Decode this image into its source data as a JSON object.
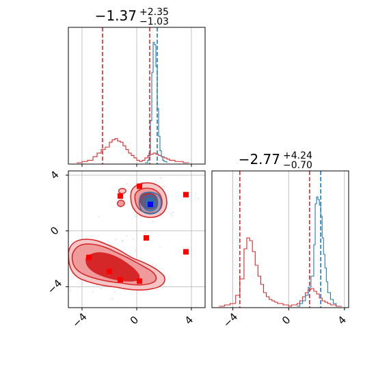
{
  "colors": {
    "red": "#d62728",
    "blue": "#1f77b4",
    "grid": "#b0b0b0",
    "marker_red": "#ff0000",
    "marker_blue": "#0000ff"
  },
  "chart_data": [
    {
      "type": "histogram",
      "panel": "top-left",
      "title": {
        "main": "−1.37",
        "sup": "+2.35",
        "sub": "−1.03"
      },
      "xlim": [
        -5,
        5
      ],
      "x_ticks": [
        -4,
        0,
        4
      ],
      "tick_labels_shown": false,
      "grid": true,
      "series": [
        {
          "name": "",
          "color": "red",
          "x": [
            -4.4,
            -4.0,
            -3.6,
            -3.2,
            -2.9,
            -2.6,
            -2.3,
            -2.0,
            -1.8,
            -1.6,
            -1.4,
            -1.2,
            -1.0,
            -0.8,
            -0.6,
            -0.4,
            -0.2,
            0.0,
            0.2,
            0.4,
            0.6,
            0.8,
            1.0,
            1.2,
            1.4,
            1.6,
            1.8,
            2.0,
            2.2,
            2.4,
            2.6,
            2.8,
            3.0,
            3.4,
            3.8
          ],
          "density": [
            0.0,
            0.01,
            0.02,
            0.05,
            0.08,
            0.11,
            0.13,
            0.17,
            0.19,
            0.2,
            0.18,
            0.17,
            0.14,
            0.11,
            0.08,
            0.06,
            0.04,
            0.02,
            0.01,
            0.02,
            0.04,
            0.06,
            0.07,
            0.08,
            0.07,
            0.06,
            0.05,
            0.04,
            0.03,
            0.02,
            0.02,
            0.01,
            0.01,
            0.0,
            0.0
          ]
        },
        {
          "name": "",
          "color": "blue",
          "x": [
            0.6,
            0.8,
            0.9,
            1.0,
            1.1,
            1.2,
            1.3,
            1.4,
            1.5,
            1.6,
            1.7,
            1.8,
            1.9,
            2.0,
            2.2
          ],
          "density": [
            0.0,
            0.02,
            0.08,
            0.35,
            0.75,
            1.0,
            0.98,
            0.8,
            0.45,
            0.22,
            0.1,
            0.05,
            0.02,
            0.01,
            0.0
          ]
        }
      ],
      "vlines": [
        {
          "x": -2.5,
          "color": "red"
        },
        {
          "x": 0.95,
          "color": "red"
        },
        {
          "x": 1.5,
          "color": "blue"
        }
      ]
    },
    {
      "type": "contour",
      "panel": "bottom-left",
      "xlim": [
        -5,
        5
      ],
      "ylim": [
        -5.5,
        4.3
      ],
      "x_ticks": [
        -4,
        0,
        4
      ],
      "y_ticks": [
        -4,
        0,
        4
      ],
      "x_tick_labels": [
        "−4",
        "0",
        "4"
      ],
      "y_tick_labels": [
        "−4",
        "0",
        "4"
      ],
      "grid": true,
      "red_markers": [
        {
          "x": -1.2,
          "y": 2.5
        },
        {
          "x": 0.2,
          "y": 3.2
        },
        {
          "x": 3.6,
          "y": 2.6
        },
        {
          "x": 0.7,
          "y": -0.5
        },
        {
          "x": 3.6,
          "y": -1.5
        },
        {
          "x": -3.5,
          "y": -1.9
        },
        {
          "x": -2.0,
          "y": -2.9
        },
        {
          "x": -1.2,
          "y": -3.5
        },
        {
          "x": 0.2,
          "y": -3.6
        }
      ],
      "blue_markers": [
        {
          "x": 1.0,
          "y": 1.9
        }
      ]
    },
    {
      "type": "histogram",
      "panel": "bottom-right",
      "title": {
        "main": "−2.77",
        "sup": "+4.24",
        "sub": "−0.70"
      },
      "xlim": [
        -5.5,
        4.3
      ],
      "x_ticks": [
        -4,
        0,
        4
      ],
      "x_tick_labels": [
        "−4",
        "0",
        "4"
      ],
      "grid": true,
      "series": [
        {
          "name": "",
          "color": "red",
          "x": [
            -5.0,
            -4.6,
            -4.2,
            -3.8,
            -3.5,
            -3.2,
            -3.0,
            -2.8,
            -2.6,
            -2.4,
            -2.2,
            -2.0,
            -1.8,
            -1.6,
            -1.4,
            -1.2,
            -1.0,
            -0.8,
            -0.6,
            -0.4,
            -0.2,
            0.0,
            0.2,
            0.4,
            0.6,
            0.8,
            1.0,
            1.2,
            1.4,
            1.6,
            1.8,
            2.0,
            2.2,
            2.4,
            2.6,
            2.8,
            3.0,
            3.4,
            3.8
          ],
          "density": [
            0.0,
            0.01,
            0.02,
            0.08,
            0.2,
            0.42,
            0.5,
            0.48,
            0.4,
            0.3,
            0.22,
            0.16,
            0.1,
            0.07,
            0.05,
            0.04,
            0.03,
            0.02,
            0.02,
            0.01,
            0.01,
            0.0,
            0.01,
            0.01,
            0.02,
            0.04,
            0.07,
            0.1,
            0.12,
            0.13,
            0.11,
            0.09,
            0.06,
            0.04,
            0.03,
            0.02,
            0.01,
            0.0,
            0.0
          ]
        },
        {
          "name": "",
          "color": "blue",
          "x": [
            0.6,
            0.8,
            1.0,
            1.2,
            1.4,
            1.6,
            1.8,
            1.9,
            2.0,
            2.1,
            2.2,
            2.3,
            2.4,
            2.5,
            2.6,
            2.7,
            2.8,
            3.0,
            3.2,
            3.4
          ],
          "density": [
            0.0,
            0.02,
            0.04,
            0.08,
            0.14,
            0.22,
            0.45,
            0.75,
            0.8,
            0.78,
            0.74,
            0.66,
            0.5,
            0.38,
            0.28,
            0.18,
            0.1,
            0.05,
            0.02,
            0.0
          ]
        }
      ],
      "vlines": [
        {
          "x": -3.5,
          "color": "red"
        },
        {
          "x": 1.5,
          "color": "red"
        },
        {
          "x": 2.3,
          "color": "blue"
        }
      ]
    }
  ]
}
